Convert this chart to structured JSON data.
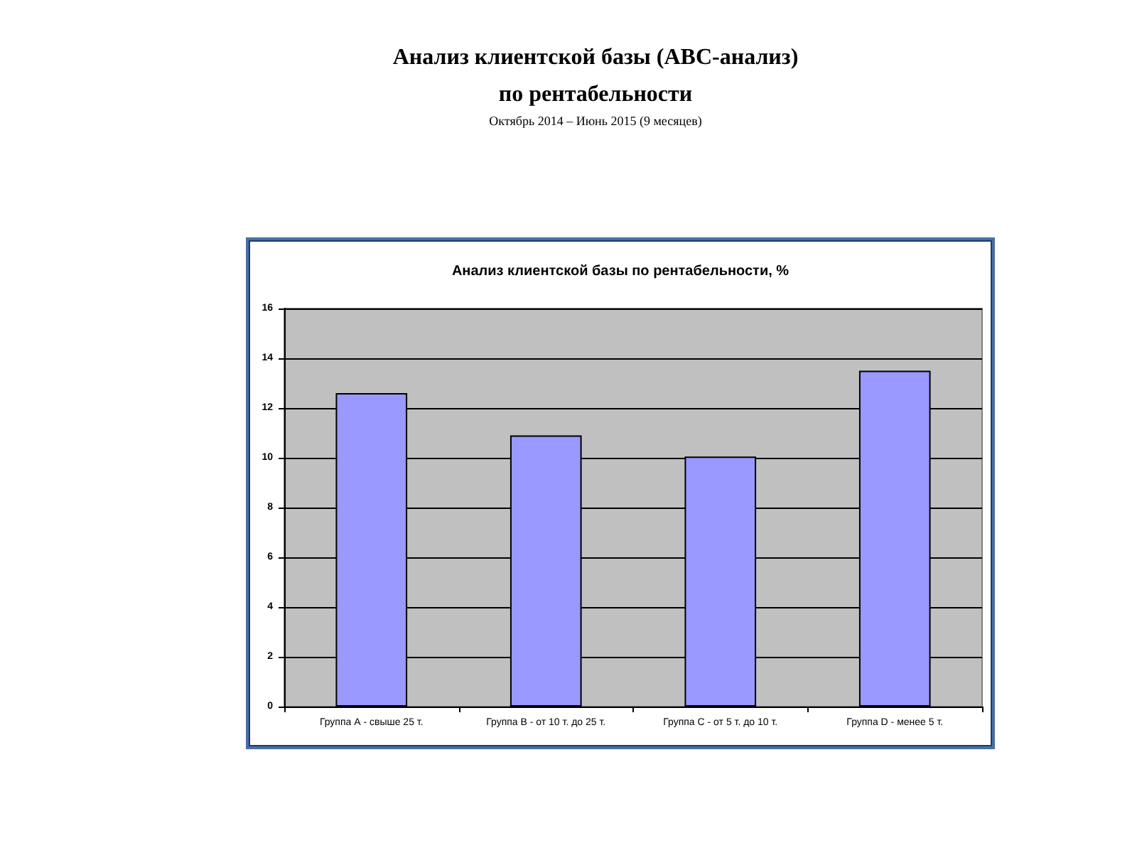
{
  "chart_data": {
    "type": "bar",
    "title": "Анализ клиентской базы по рентабельности, %",
    "annotations": [
      "Анализ клиентской базы (ABC-анализ)",
      "по рентабельности",
      "Октябрь 2014 – Июнь 2015 (9 месяцев)"
    ],
    "categories": [
      "Группа А - свыше 25 т.",
      "Группа В - от 10 т. до 25 т.",
      "Группа С - от 5 т. до 10 т.",
      "Группа D - менее 5 т."
    ],
    "values": [
      12.6,
      10.9,
      10.05,
      13.5
    ],
    "color": "#9999ff",
    "ylim": [
      0,
      16
    ],
    "yticks": [
      0,
      2,
      4,
      6,
      8,
      10,
      12,
      14,
      16
    ],
    "grid": "y"
  }
}
